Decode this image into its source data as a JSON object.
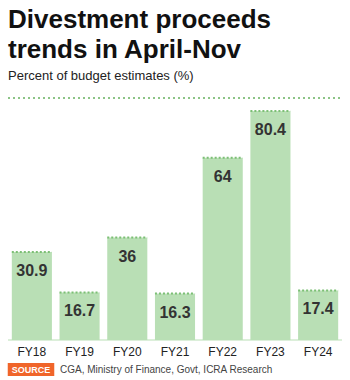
{
  "chart_data": {
    "type": "bar",
    "title": "Divestment proceeds trends in April-Nov",
    "subtitle": "Percent of budget estimates (%)",
    "categories": [
      "FY18",
      "FY19",
      "FY20",
      "FY21",
      "FY22",
      "FY23",
      "FY24"
    ],
    "values": [
      30.9,
      16.7,
      36,
      16.3,
      64,
      80.4,
      17.4
    ],
    "color": "#b9dfb5",
    "ylim": [
      0,
      85
    ],
    "grid": false,
    "data_labels": true,
    "tick_labels": "x",
    "source_label": "SOURCE",
    "source": "CGA, Ministry of Finance, Govt, ICRA Research"
  }
}
